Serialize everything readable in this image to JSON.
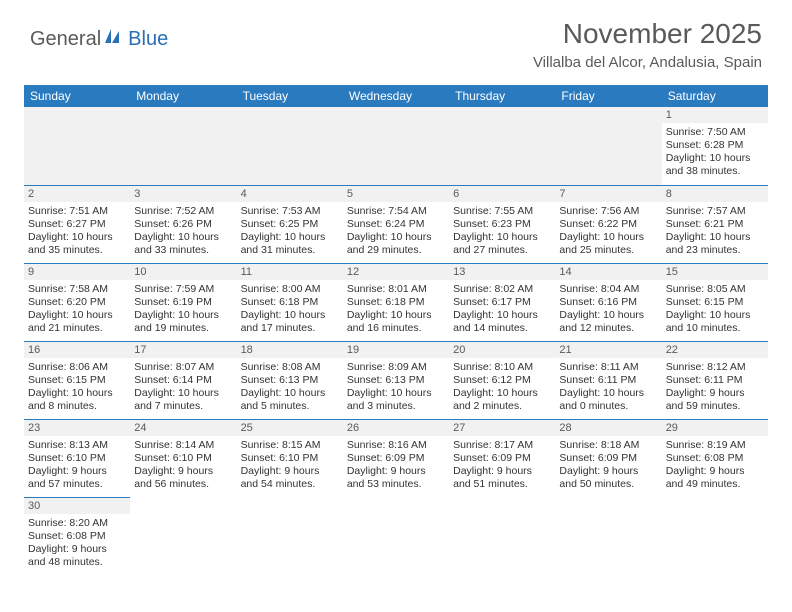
{
  "logo": {
    "general": "General",
    "blue": "Blue"
  },
  "header": {
    "title": "November 2025",
    "location": "Villalba del Alcor, Andalusia, Spain"
  },
  "weekdays": [
    "Sunday",
    "Monday",
    "Tuesday",
    "Wednesday",
    "Thursday",
    "Friday",
    "Saturday"
  ],
  "colors": {
    "header_bg": "#2a7ac0",
    "header_text": "#ffffff",
    "blank_bg": "#f1f1f1",
    "border": "#2a7ac0",
    "body_text": "#333333",
    "title_text": "#5a5a5a"
  },
  "weeks": [
    [
      null,
      null,
      null,
      null,
      null,
      null,
      {
        "n": "1",
        "sr": "Sunrise: 7:50 AM",
        "ss": "Sunset: 6:28 PM",
        "d1": "Daylight: 10 hours",
        "d2": "and 38 minutes."
      }
    ],
    [
      {
        "n": "2",
        "sr": "Sunrise: 7:51 AM",
        "ss": "Sunset: 6:27 PM",
        "d1": "Daylight: 10 hours",
        "d2": "and 35 minutes."
      },
      {
        "n": "3",
        "sr": "Sunrise: 7:52 AM",
        "ss": "Sunset: 6:26 PM",
        "d1": "Daylight: 10 hours",
        "d2": "and 33 minutes."
      },
      {
        "n": "4",
        "sr": "Sunrise: 7:53 AM",
        "ss": "Sunset: 6:25 PM",
        "d1": "Daylight: 10 hours",
        "d2": "and 31 minutes."
      },
      {
        "n": "5",
        "sr": "Sunrise: 7:54 AM",
        "ss": "Sunset: 6:24 PM",
        "d1": "Daylight: 10 hours",
        "d2": "and 29 minutes."
      },
      {
        "n": "6",
        "sr": "Sunrise: 7:55 AM",
        "ss": "Sunset: 6:23 PM",
        "d1": "Daylight: 10 hours",
        "d2": "and 27 minutes."
      },
      {
        "n": "7",
        "sr": "Sunrise: 7:56 AM",
        "ss": "Sunset: 6:22 PM",
        "d1": "Daylight: 10 hours",
        "d2": "and 25 minutes."
      },
      {
        "n": "8",
        "sr": "Sunrise: 7:57 AM",
        "ss": "Sunset: 6:21 PM",
        "d1": "Daylight: 10 hours",
        "d2": "and 23 minutes."
      }
    ],
    [
      {
        "n": "9",
        "sr": "Sunrise: 7:58 AM",
        "ss": "Sunset: 6:20 PM",
        "d1": "Daylight: 10 hours",
        "d2": "and 21 minutes."
      },
      {
        "n": "10",
        "sr": "Sunrise: 7:59 AM",
        "ss": "Sunset: 6:19 PM",
        "d1": "Daylight: 10 hours",
        "d2": "and 19 minutes."
      },
      {
        "n": "11",
        "sr": "Sunrise: 8:00 AM",
        "ss": "Sunset: 6:18 PM",
        "d1": "Daylight: 10 hours",
        "d2": "and 17 minutes."
      },
      {
        "n": "12",
        "sr": "Sunrise: 8:01 AM",
        "ss": "Sunset: 6:18 PM",
        "d1": "Daylight: 10 hours",
        "d2": "and 16 minutes."
      },
      {
        "n": "13",
        "sr": "Sunrise: 8:02 AM",
        "ss": "Sunset: 6:17 PM",
        "d1": "Daylight: 10 hours",
        "d2": "and 14 minutes."
      },
      {
        "n": "14",
        "sr": "Sunrise: 8:04 AM",
        "ss": "Sunset: 6:16 PM",
        "d1": "Daylight: 10 hours",
        "d2": "and 12 minutes."
      },
      {
        "n": "15",
        "sr": "Sunrise: 8:05 AM",
        "ss": "Sunset: 6:15 PM",
        "d1": "Daylight: 10 hours",
        "d2": "and 10 minutes."
      }
    ],
    [
      {
        "n": "16",
        "sr": "Sunrise: 8:06 AM",
        "ss": "Sunset: 6:15 PM",
        "d1": "Daylight: 10 hours",
        "d2": "and 8 minutes."
      },
      {
        "n": "17",
        "sr": "Sunrise: 8:07 AM",
        "ss": "Sunset: 6:14 PM",
        "d1": "Daylight: 10 hours",
        "d2": "and 7 minutes."
      },
      {
        "n": "18",
        "sr": "Sunrise: 8:08 AM",
        "ss": "Sunset: 6:13 PM",
        "d1": "Daylight: 10 hours",
        "d2": "and 5 minutes."
      },
      {
        "n": "19",
        "sr": "Sunrise: 8:09 AM",
        "ss": "Sunset: 6:13 PM",
        "d1": "Daylight: 10 hours",
        "d2": "and 3 minutes."
      },
      {
        "n": "20",
        "sr": "Sunrise: 8:10 AM",
        "ss": "Sunset: 6:12 PM",
        "d1": "Daylight: 10 hours",
        "d2": "and 2 minutes."
      },
      {
        "n": "21",
        "sr": "Sunrise: 8:11 AM",
        "ss": "Sunset: 6:11 PM",
        "d1": "Daylight: 10 hours",
        "d2": "and 0 minutes."
      },
      {
        "n": "22",
        "sr": "Sunrise: 8:12 AM",
        "ss": "Sunset: 6:11 PM",
        "d1": "Daylight: 9 hours",
        "d2": "and 59 minutes."
      }
    ],
    [
      {
        "n": "23",
        "sr": "Sunrise: 8:13 AM",
        "ss": "Sunset: 6:10 PM",
        "d1": "Daylight: 9 hours",
        "d2": "and 57 minutes."
      },
      {
        "n": "24",
        "sr": "Sunrise: 8:14 AM",
        "ss": "Sunset: 6:10 PM",
        "d1": "Daylight: 9 hours",
        "d2": "and 56 minutes."
      },
      {
        "n": "25",
        "sr": "Sunrise: 8:15 AM",
        "ss": "Sunset: 6:10 PM",
        "d1": "Daylight: 9 hours",
        "d2": "and 54 minutes."
      },
      {
        "n": "26",
        "sr": "Sunrise: 8:16 AM",
        "ss": "Sunset: 6:09 PM",
        "d1": "Daylight: 9 hours",
        "d2": "and 53 minutes."
      },
      {
        "n": "27",
        "sr": "Sunrise: 8:17 AM",
        "ss": "Sunset: 6:09 PM",
        "d1": "Daylight: 9 hours",
        "d2": "and 51 minutes."
      },
      {
        "n": "28",
        "sr": "Sunrise: 8:18 AM",
        "ss": "Sunset: 6:09 PM",
        "d1": "Daylight: 9 hours",
        "d2": "and 50 minutes."
      },
      {
        "n": "29",
        "sr": "Sunrise: 8:19 AM",
        "ss": "Sunset: 6:08 PM",
        "d1": "Daylight: 9 hours",
        "d2": "and 49 minutes."
      }
    ],
    [
      {
        "n": "30",
        "sr": "Sunrise: 8:20 AM",
        "ss": "Sunset: 6:08 PM",
        "d1": "Daylight: 9 hours",
        "d2": "and 48 minutes."
      },
      null,
      null,
      null,
      null,
      null,
      null
    ]
  ]
}
